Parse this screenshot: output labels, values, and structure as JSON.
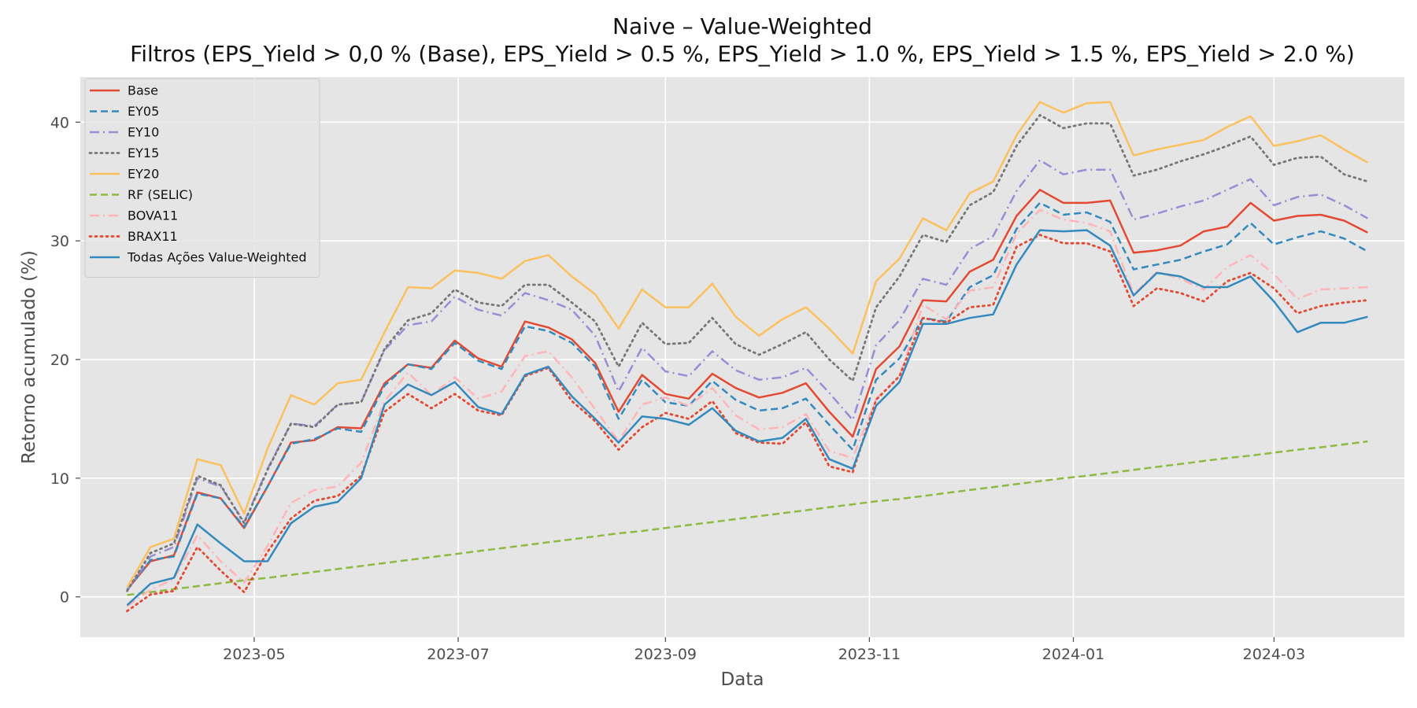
{
  "chart_data": {
    "type": "line",
    "title": "Naive – Value-Weighted",
    "subtitle": "Filtros (EPS_Yield > 0,0 % (Base), EPS_Yield > 0.5 %, EPS_Yield > 1.0 %, EPS_Yield > 1.5 %, EPS_Yield > 2.0 %)",
    "xlabel": "Data",
    "ylabel": "Retorno acumulado (%)",
    "xlim": [
      "2023-03-10",
      "2024-04-09"
    ],
    "ylim": [
      -3.4,
      43.8
    ],
    "xticks": [
      "2023-05",
      "2023-07",
      "2023-09",
      "2023-11",
      "2024-01",
      "2024-03"
    ],
    "yticks": [
      0,
      10,
      20,
      30,
      40
    ],
    "grid": true,
    "legend_position": "upper left",
    "x": [
      "2023-03-24",
      "2023-03-31",
      "2023-04-07",
      "2023-04-14",
      "2023-04-21",
      "2023-04-28",
      "2023-05-05",
      "2023-05-12",
      "2023-05-19",
      "2023-05-26",
      "2023-06-02",
      "2023-06-09",
      "2023-06-16",
      "2023-06-23",
      "2023-06-30",
      "2023-07-07",
      "2023-07-14",
      "2023-07-21",
      "2023-07-28",
      "2023-08-04",
      "2023-08-11",
      "2023-08-18",
      "2023-08-25",
      "2023-09-01",
      "2023-09-08",
      "2023-09-15",
      "2023-09-22",
      "2023-09-29",
      "2023-10-06",
      "2023-10-13",
      "2023-10-20",
      "2023-10-27",
      "2023-11-03",
      "2023-11-10",
      "2023-11-17",
      "2023-11-24",
      "2023-12-01",
      "2023-12-08",
      "2023-12-15",
      "2023-12-22",
      "2023-12-29",
      "2024-01-05",
      "2024-01-12",
      "2024-01-19",
      "2024-01-26",
      "2024-02-02",
      "2024-02-09",
      "2024-02-16",
      "2024-02-23",
      "2024-03-01",
      "2024-03-08",
      "2024-03-15",
      "2024-03-22",
      "2024-03-29"
    ],
    "series": [
      {
        "name": "Base",
        "color": "#e24a33",
        "dash": "solid",
        "values": [
          0.6,
          3.0,
          3.5,
          8.8,
          8.3,
          5.8,
          9.3,
          13.0,
          13.2,
          14.3,
          14.2,
          18.0,
          19.6,
          19.3,
          21.6,
          20.1,
          19.4,
          23.2,
          22.7,
          21.7,
          19.7,
          15.6,
          18.7,
          17.1,
          16.7,
          18.8,
          17.6,
          16.8,
          17.2,
          18.0,
          15.6,
          13.5,
          19.2,
          21.1,
          25.0,
          24.9,
          27.4,
          28.4,
          32.1,
          34.3,
          33.2,
          33.2,
          33.4,
          29.0,
          29.2,
          29.6,
          30.8,
          31.2,
          33.2,
          31.7,
          32.1,
          32.2,
          31.7,
          30.7
        ]
      },
      {
        "name": "EY05",
        "color": "#348abd",
        "dash": "dashed",
        "values": [
          0.6,
          3.1,
          3.4,
          8.7,
          8.3,
          5.9,
          9.3,
          12.9,
          13.3,
          14.2,
          13.9,
          17.8,
          19.6,
          19.2,
          21.4,
          19.9,
          19.2,
          22.8,
          22.4,
          21.4,
          19.4,
          15.0,
          18.3,
          16.4,
          16.1,
          18.2,
          16.6,
          15.7,
          15.9,
          16.7,
          14.5,
          12.4,
          18.3,
          20.1,
          23.5,
          23.2,
          26.1,
          27.1,
          31.0,
          33.2,
          32.2,
          32.4,
          31.6,
          27.6,
          28.0,
          28.4,
          29.1,
          29.7,
          31.5,
          29.7,
          30.3,
          30.8,
          30.2,
          29.1
        ]
      },
      {
        "name": "EY10",
        "color": "#988ed5",
        "dash": "dashdot",
        "values": [
          0.5,
          3.4,
          4.2,
          10.0,
          9.3,
          6.3,
          10.8,
          14.6,
          14.4,
          16.2,
          16.4,
          20.8,
          22.9,
          23.2,
          25.3,
          24.2,
          23.7,
          25.6,
          25.0,
          24.2,
          22.0,
          17.3,
          21.0,
          19.0,
          18.6,
          20.7,
          19.1,
          18.3,
          18.5,
          19.3,
          17.2,
          14.9,
          21.2,
          23.3,
          26.8,
          26.3,
          29.3,
          30.4,
          34.2,
          36.8,
          35.6,
          36.0,
          36.0,
          31.8,
          32.3,
          32.9,
          33.4,
          34.3,
          35.2,
          33.0,
          33.7,
          33.9,
          33.0,
          31.9
        ]
      },
      {
        "name": "EY15",
        "color": "#777777",
        "dash": "dotted",
        "values": [
          0.5,
          3.7,
          4.5,
          10.2,
          9.4,
          6.2,
          10.7,
          14.6,
          14.3,
          16.2,
          16.4,
          20.9,
          23.3,
          23.9,
          25.9,
          24.8,
          24.5,
          26.3,
          26.3,
          24.8,
          23.2,
          19.4,
          23.1,
          21.3,
          21.4,
          23.5,
          21.3,
          20.4,
          21.3,
          22.3,
          20.0,
          18.2,
          24.4,
          27.0,
          30.5,
          29.9,
          33.0,
          34.1,
          38.0,
          40.6,
          39.5,
          39.9,
          39.9,
          35.5,
          36.0,
          36.7,
          37.3,
          38.0,
          38.8,
          36.4,
          37.0,
          37.1,
          35.6,
          35.0
        ]
      },
      {
        "name": "EY20",
        "color": "#fbc15e",
        "dash": "solid",
        "values": [
          0.8,
          4.2,
          4.9,
          11.6,
          11.1,
          7.0,
          12.5,
          17.0,
          16.2,
          18.0,
          18.3,
          22.3,
          26.1,
          26.0,
          27.5,
          27.3,
          26.8,
          28.3,
          28.8,
          27.0,
          25.5,
          22.6,
          25.9,
          24.4,
          24.4,
          26.4,
          23.6,
          22.0,
          23.4,
          24.4,
          22.6,
          20.5,
          26.6,
          28.5,
          31.9,
          30.9,
          34.0,
          35.0,
          38.9,
          41.7,
          40.8,
          41.6,
          41.7,
          37.2,
          37.7,
          38.1,
          38.5,
          39.6,
          40.5,
          38.0,
          38.4,
          38.9,
          37.7,
          36.6
        ]
      },
      {
        "name": "RF (SELIC)",
        "color": "#8eba42",
        "dash": "dashed",
        "values": [
          0.15,
          0.4,
          0.65,
          0.9,
          1.15,
          1.4,
          1.6,
          1.85,
          2.1,
          2.35,
          2.6,
          2.85,
          3.1,
          3.35,
          3.6,
          3.85,
          4.1,
          4.35,
          4.6,
          4.85,
          5.1,
          5.35,
          5.55,
          5.8,
          6.05,
          6.3,
          6.55,
          6.8,
          7.05,
          7.3,
          7.55,
          7.8,
          8.05,
          8.25,
          8.5,
          8.75,
          9.0,
          9.25,
          9.5,
          9.75,
          10.0,
          10.2,
          10.45,
          10.7,
          10.95,
          11.2,
          11.45,
          11.7,
          11.9,
          12.15,
          12.4,
          12.6,
          12.85,
          13.1
        ]
      },
      {
        "name": "BOVA11",
        "color": "#ffb5b8",
        "dash": "dashdot",
        "values": [
          -0.8,
          0.6,
          1.5,
          5.2,
          3.0,
          1.2,
          4.3,
          7.9,
          9.0,
          9.3,
          11.3,
          16.5,
          18.9,
          17.0,
          18.5,
          16.7,
          17.3,
          20.3,
          20.7,
          18.5,
          15.8,
          13.1,
          16.2,
          16.8,
          16.1,
          17.6,
          15.3,
          14.1,
          14.3,
          15.4,
          12.3,
          11.7,
          16.7,
          18.6,
          24.6,
          23.4,
          25.8,
          26.1,
          30.6,
          32.6,
          31.8,
          31.5,
          30.8,
          25.5,
          27.4,
          26.8,
          25.9,
          27.8,
          28.8,
          27.2,
          25.1,
          25.9,
          26.0,
          26.1
        ]
      },
      {
        "name": "BRAX11",
        "color": "#e24a33",
        "dash": "dotted",
        "values": [
          -1.2,
          0.2,
          0.5,
          4.2,
          2.2,
          0.4,
          3.8,
          6.6,
          8.1,
          8.5,
          10.2,
          15.6,
          17.1,
          15.9,
          17.1,
          15.7,
          15.3,
          18.6,
          19.3,
          16.5,
          14.8,
          12.4,
          14.3,
          15.5,
          15.0,
          16.5,
          13.8,
          13.0,
          12.9,
          14.7,
          11.0,
          10.5,
          16.6,
          18.6,
          23.5,
          23.1,
          24.4,
          24.6,
          29.5,
          30.5,
          29.8,
          29.8,
          29.1,
          24.5,
          26.0,
          25.6,
          24.9,
          26.6,
          27.3,
          26.0,
          23.9,
          24.5,
          24.8,
          25.0
        ]
      },
      {
        "name": "Todas Ações Value-Weighted",
        "color": "#348abd",
        "dash": "solid",
        "values": [
          -0.7,
          1.1,
          1.6,
          6.1,
          4.5,
          3.0,
          3.0,
          6.2,
          7.6,
          8.0,
          10.0,
          16.2,
          17.9,
          17.0,
          18.1,
          16.0,
          15.4,
          18.7,
          19.4,
          16.9,
          15.0,
          13.0,
          15.2,
          15.0,
          14.5,
          15.9,
          14.0,
          13.1,
          13.4,
          15.0,
          11.6,
          10.8,
          16.1,
          18.1,
          23.0,
          23.0,
          23.5,
          23.8,
          28.0,
          30.9,
          30.8,
          30.9,
          29.6,
          25.4,
          27.3,
          27.0,
          26.1,
          26.1,
          27.0,
          24.9,
          22.3,
          23.1,
          23.1,
          23.6
        ]
      }
    ]
  }
}
